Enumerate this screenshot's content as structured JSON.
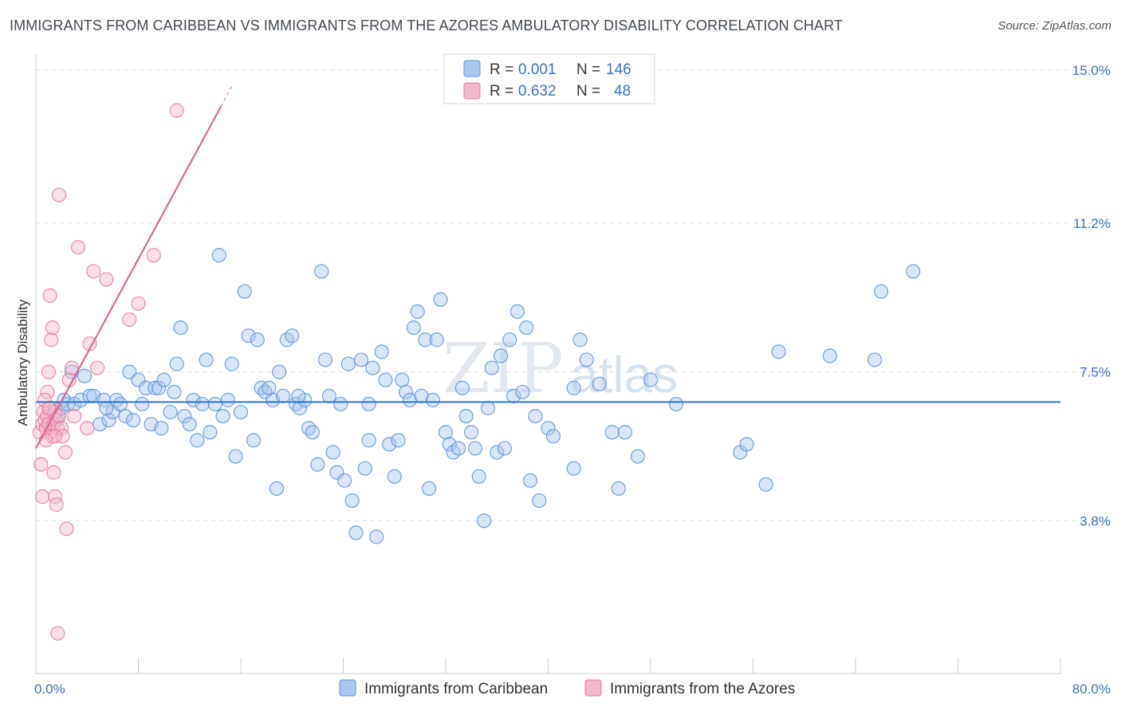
{
  "title": "IMMIGRANTS FROM CARIBBEAN VS IMMIGRANTS FROM THE AZORES AMBULATORY DISABILITY CORRELATION CHART",
  "source": "Source: ZipAtlas.com",
  "watermark": {
    "zip": "ZIP",
    "atlas": "atlas"
  },
  "colors": {
    "blue": "#5b93d9",
    "blue_fill": "#a9c8f0",
    "pink": "#e87aa0",
    "pink_fill": "#f5b8cc",
    "tick": "#3b72c4"
  },
  "legend": {
    "series1": {
      "r_label": "R = ",
      "r_value": "0.001",
      "n_label": "N = ",
      "n_value": "146"
    },
    "series2": {
      "r_label": "R = ",
      "r_value": "0.632",
      "n_label": "N = ",
      "n_value": "48"
    }
  },
  "chart_data": {
    "type": "scatter",
    "title": "IMMIGRANTS FROM CARIBBEAN VS IMMIGRANTS FROM THE AZORES AMBULATORY DISABILITY CORRELATION CHART",
    "xlabel": "",
    "ylabel": "Ambulatory Disability",
    "xlim": [
      0,
      80
    ],
    "ylim": [
      0,
      15.4
    ],
    "x_tick_labels": [
      "0.0%",
      "80.0%"
    ],
    "y_ticks": [
      3.8,
      7.5,
      11.2,
      15.0
    ],
    "y_tick_labels": [
      "3.8%",
      "7.5%",
      "11.2%",
      "15.0%"
    ],
    "series": [
      {
        "name": "Immigrants from Caribbean",
        "color": "#5b93d9",
        "trend": {
          "x": [
            0,
            80
          ],
          "y": [
            6.75,
            6.75
          ]
        },
        "points": [
          [
            1.0,
            6.3
          ],
          [
            1.2,
            6.2
          ],
          [
            1.4,
            6.5
          ],
          [
            1.6,
            6.3
          ],
          [
            1.8,
            6.4
          ],
          [
            2.0,
            6.6
          ],
          [
            2.2,
            6.8
          ],
          [
            2.5,
            6.7
          ],
          [
            2.8,
            7.5
          ],
          [
            3.0,
            6.7
          ],
          [
            3.5,
            6.8
          ],
          [
            3.8,
            7.4
          ],
          [
            4.2,
            6.9
          ],
          [
            4.5,
            6.9
          ],
          [
            5.0,
            6.2
          ],
          [
            5.3,
            6.8
          ],
          [
            5.7,
            6.3
          ],
          [
            6.0,
            6.5
          ],
          [
            6.3,
            6.8
          ],
          [
            6.6,
            6.7
          ],
          [
            7.0,
            6.4
          ],
          [
            7.3,
            7.5
          ],
          [
            7.6,
            6.3
          ],
          [
            8.0,
            7.3
          ],
          [
            8.3,
            6.7
          ],
          [
            8.6,
            7.1
          ],
          [
            9.0,
            6.2
          ],
          [
            9.3,
            7.1
          ],
          [
            9.6,
            7.1
          ],
          [
            9.8,
            6.1
          ],
          [
            10.0,
            7.3
          ],
          [
            10.5,
            6.5
          ],
          [
            11.0,
            7.7
          ],
          [
            11.3,
            8.6
          ],
          [
            11.6,
            6.4
          ],
          [
            12.0,
            6.2
          ],
          [
            12.3,
            6.8
          ],
          [
            12.6,
            5.8
          ],
          [
            13.0,
            6.7
          ],
          [
            13.3,
            7.8
          ],
          [
            13.6,
            6.0
          ],
          [
            14.0,
            6.7
          ],
          [
            14.3,
            10.4
          ],
          [
            14.6,
            6.4
          ],
          [
            15.0,
            6.8
          ],
          [
            15.3,
            7.7
          ],
          [
            15.6,
            5.4
          ],
          [
            16.0,
            6.5
          ],
          [
            16.3,
            9.5
          ],
          [
            16.6,
            8.4
          ],
          [
            17.0,
            5.8
          ],
          [
            17.3,
            8.3
          ],
          [
            17.6,
            7.1
          ],
          [
            17.9,
            7.0
          ],
          [
            18.2,
            7.1
          ],
          [
            18.5,
            6.8
          ],
          [
            18.8,
            4.6
          ],
          [
            19.0,
            7.5
          ],
          [
            19.3,
            6.9
          ],
          [
            19.6,
            8.3
          ],
          [
            20.0,
            8.4
          ],
          [
            20.3,
            6.7
          ],
          [
            20.6,
            6.6
          ],
          [
            21.0,
            6.8
          ],
          [
            21.3,
            6.1
          ],
          [
            21.6,
            6.0
          ],
          [
            22.0,
            5.2
          ],
          [
            22.3,
            10.0
          ],
          [
            22.6,
            7.8
          ],
          [
            22.9,
            6.9
          ],
          [
            23.2,
            5.5
          ],
          [
            23.5,
            5.0
          ],
          [
            23.8,
            6.7
          ],
          [
            24.1,
            4.8
          ],
          [
            24.4,
            7.7
          ],
          [
            24.7,
            4.3
          ],
          [
            25.0,
            3.5
          ],
          [
            25.4,
            7.8
          ],
          [
            25.7,
            5.1
          ],
          [
            26.0,
            5.8
          ],
          [
            26.3,
            7.6
          ],
          [
            26.6,
            3.4
          ],
          [
            27.0,
            8.0
          ],
          [
            27.3,
            7.3
          ],
          [
            27.6,
            5.7
          ],
          [
            28.0,
            4.9
          ],
          [
            28.3,
            5.8
          ],
          [
            28.6,
            7.3
          ],
          [
            28.9,
            7.0
          ],
          [
            29.2,
            6.8
          ],
          [
            29.5,
            8.6
          ],
          [
            29.8,
            9.0
          ],
          [
            30.1,
            6.9
          ],
          [
            30.4,
            8.3
          ],
          [
            30.7,
            4.6
          ],
          [
            31.0,
            6.8
          ],
          [
            31.3,
            8.3
          ],
          [
            31.6,
            9.3
          ],
          [
            32.0,
            6.0
          ],
          [
            32.3,
            5.7
          ],
          [
            32.6,
            5.5
          ],
          [
            33.0,
            5.6
          ],
          [
            33.3,
            7.1
          ],
          [
            33.6,
            6.4
          ],
          [
            34.0,
            6.0
          ],
          [
            34.3,
            5.6
          ],
          [
            34.6,
            4.9
          ],
          [
            35.0,
            3.8
          ],
          [
            35.3,
            6.6
          ],
          [
            35.6,
            7.6
          ],
          [
            36.0,
            5.5
          ],
          [
            36.3,
            7.9
          ],
          [
            36.6,
            5.6
          ],
          [
            37.0,
            8.3
          ],
          [
            37.3,
            6.9
          ],
          [
            37.6,
            9.0
          ],
          [
            38.0,
            7.0
          ],
          [
            38.3,
            8.6
          ],
          [
            38.6,
            4.8
          ],
          [
            39.0,
            6.4
          ],
          [
            39.3,
            4.3
          ],
          [
            40.0,
            6.1
          ],
          [
            40.4,
            5.9
          ],
          [
            42.0,
            5.1
          ],
          [
            42.5,
            8.3
          ],
          [
            43.0,
            7.8
          ],
          [
            44.0,
            7.2
          ],
          [
            45.0,
            6.0
          ],
          [
            45.5,
            4.6
          ],
          [
            46.0,
            6.0
          ],
          [
            47.0,
            5.4
          ],
          [
            48.0,
            7.3
          ],
          [
            50.0,
            6.7
          ],
          [
            55.0,
            5.5
          ],
          [
            55.5,
            5.7
          ],
          [
            57.0,
            4.7
          ],
          [
            58.0,
            8.0
          ],
          [
            62.0,
            7.9
          ],
          [
            65.5,
            7.8
          ],
          [
            66.0,
            9.5
          ],
          [
            68.5,
            10.0
          ],
          [
            42.0,
            7.1
          ],
          [
            26.0,
            6.7
          ],
          [
            20.5,
            6.9
          ],
          [
            10.8,
            7.0
          ],
          [
            5.5,
            6.6
          ]
        ]
      },
      {
        "name": "Immigrants from the Azores",
        "color": "#e87aa0",
        "trend": {
          "x": [
            0,
            15.3
          ],
          "y": [
            5.6,
            14.6
          ]
        },
        "points": [
          [
            0.3,
            6.0
          ],
          [
            0.5,
            6.2
          ],
          [
            0.6,
            6.5
          ],
          [
            0.7,
            6.3
          ],
          [
            0.8,
            6.1
          ],
          [
            0.9,
            6.4
          ],
          [
            1.0,
            6.2
          ],
          [
            1.1,
            6.6
          ],
          [
            1.2,
            6.0
          ],
          [
            1.3,
            5.9
          ],
          [
            1.4,
            6.2
          ],
          [
            1.5,
            6.5
          ],
          [
            1.6,
            6.3
          ],
          [
            1.7,
            6.1
          ],
          [
            1.8,
            6.4
          ],
          [
            0.4,
            5.2
          ],
          [
            0.5,
            4.4
          ],
          [
            0.9,
            7.0
          ],
          [
            1.0,
            7.5
          ],
          [
            1.1,
            9.4
          ],
          [
            1.2,
            8.3
          ],
          [
            1.3,
            8.6
          ],
          [
            1.4,
            5.0
          ],
          [
            1.5,
            4.4
          ],
          [
            1.6,
            4.2
          ],
          [
            1.7,
            1.0
          ],
          [
            1.8,
            11.9
          ],
          [
            2.0,
            6.1
          ],
          [
            2.1,
            5.9
          ],
          [
            2.3,
            5.5
          ],
          [
            2.4,
            3.6
          ],
          [
            2.6,
            7.3
          ],
          [
            2.8,
            7.6
          ],
          [
            3.0,
            6.4
          ],
          [
            3.3,
            10.6
          ],
          [
            4.0,
            6.1
          ],
          [
            4.2,
            8.2
          ],
          [
            4.5,
            10.0
          ],
          [
            4.8,
            7.6
          ],
          [
            5.5,
            9.8
          ],
          [
            7.3,
            8.8
          ],
          [
            8.0,
            9.2
          ],
          [
            9.2,
            10.4
          ],
          [
            11.0,
            14.0
          ],
          [
            0.7,
            6.8
          ],
          [
            1.0,
            6.6
          ],
          [
            1.5,
            5.9
          ],
          [
            0.8,
            5.8
          ]
        ]
      }
    ],
    "legend": [
      "Immigrants from Caribbean",
      "Immigrants from the Azores"
    ]
  }
}
